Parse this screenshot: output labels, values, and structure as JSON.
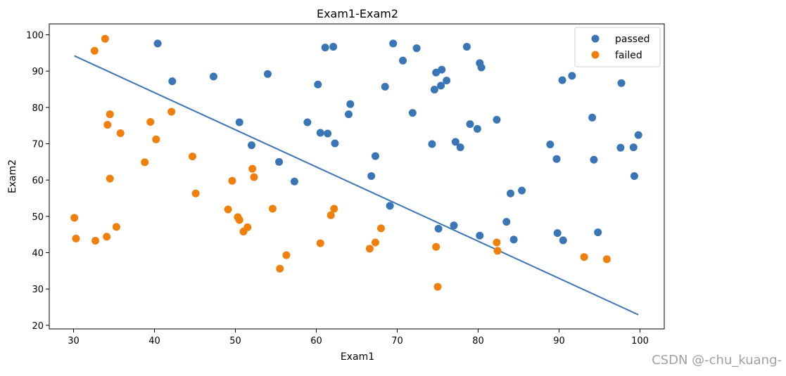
{
  "chart_data": {
    "type": "scatter",
    "title": "Exam1-Exam2",
    "xlabel": "Exam1",
    "ylabel": "Exam2",
    "xlim": [
      27,
      103
    ],
    "ylim": [
      19,
      103
    ],
    "xticks": [
      "30",
      "40",
      "50",
      "60",
      "70",
      "80",
      "90",
      "100"
    ],
    "yticks": [
      "20",
      "30",
      "40",
      "50",
      "60",
      "70",
      "80",
      "90",
      "100"
    ],
    "grid": false,
    "legend_position": "top-right",
    "colors": {
      "passed": "#3a75b5",
      "failed": "#f17f0b",
      "line": "#3a75b5"
    },
    "series": [
      {
        "name": "passed",
        "points": [
          [
            40.4,
            97.6
          ],
          [
            42.2,
            87.2
          ],
          [
            47.3,
            88.5
          ],
          [
            50.5,
            75.9
          ],
          [
            52.0,
            69.6
          ],
          [
            54.0,
            89.2
          ],
          [
            55.4,
            65.0
          ],
          [
            57.3,
            59.6
          ],
          [
            58.9,
            75.9
          ],
          [
            60.2,
            86.3
          ],
          [
            60.5,
            73.0
          ],
          [
            61.1,
            96.5
          ],
          [
            61.4,
            72.8
          ],
          [
            62.1,
            96.7
          ],
          [
            62.3,
            70.1
          ],
          [
            64.0,
            78.1
          ],
          [
            64.2,
            80.9
          ],
          [
            66.8,
            61.1
          ],
          [
            67.3,
            66.6
          ],
          [
            68.5,
            85.7
          ],
          [
            69.1,
            52.9
          ],
          [
            69.5,
            97.6
          ],
          [
            70.7,
            92.9
          ],
          [
            71.9,
            78.5
          ],
          [
            72.4,
            96.3
          ],
          [
            74.3,
            69.9
          ],
          [
            74.6,
            84.9
          ],
          [
            74.8,
            89.6
          ],
          [
            75.1,
            46.6
          ],
          [
            75.4,
            86.0
          ],
          [
            75.5,
            90.4
          ],
          [
            76.1,
            87.4
          ],
          [
            77.0,
            47.5
          ],
          [
            77.2,
            70.5
          ],
          [
            77.8,
            69.0
          ],
          [
            78.6,
            96.7
          ],
          [
            79.0,
            75.4
          ],
          [
            79.9,
            74.1
          ],
          [
            80.2,
            92.2
          ],
          [
            80.4,
            91.0
          ],
          [
            80.2,
            44.7
          ],
          [
            82.3,
            76.6
          ],
          [
            83.5,
            48.5
          ],
          [
            84.0,
            56.3
          ],
          [
            84.4,
            43.6
          ],
          [
            85.4,
            57.1
          ],
          [
            88.9,
            69.8
          ],
          [
            89.7,
            65.8
          ],
          [
            89.8,
            45.4
          ],
          [
            90.4,
            87.5
          ],
          [
            90.5,
            43.4
          ],
          [
            91.6,
            88.7
          ],
          [
            94.1,
            77.2
          ],
          [
            94.3,
            65.6
          ],
          [
            94.8,
            45.6
          ],
          [
            97.6,
            68.9
          ],
          [
            97.7,
            86.7
          ],
          [
            99.2,
            69.0
          ],
          [
            99.3,
            61.1
          ],
          [
            99.8,
            72.4
          ]
        ]
      },
      {
        "name": "failed",
        "points": [
          [
            30.1,
            49.6
          ],
          [
            30.3,
            43.9
          ],
          [
            32.6,
            95.6
          ],
          [
            32.7,
            43.3
          ],
          [
            33.9,
            98.9
          ],
          [
            34.1,
            44.4
          ],
          [
            34.2,
            75.2
          ],
          [
            34.5,
            60.4
          ],
          [
            34.5,
            78.1
          ],
          [
            35.3,
            47.1
          ],
          [
            35.8,
            72.9
          ],
          [
            38.8,
            64.9
          ],
          [
            39.5,
            76.0
          ],
          [
            40.2,
            71.2
          ],
          [
            42.1,
            78.8
          ],
          [
            44.7,
            66.5
          ],
          [
            45.1,
            56.3
          ],
          [
            49.1,
            51.9
          ],
          [
            49.6,
            59.8
          ],
          [
            50.3,
            49.8
          ],
          [
            50.5,
            49.0
          ],
          [
            51.0,
            45.8
          ],
          [
            51.5,
            47.0
          ],
          [
            52.1,
            63.1
          ],
          [
            52.3,
            60.8
          ],
          [
            54.6,
            52.1
          ],
          [
            55.5,
            35.6
          ],
          [
            56.3,
            39.3
          ],
          [
            60.5,
            42.6
          ],
          [
            61.8,
            50.3
          ],
          [
            62.2,
            52.1
          ],
          [
            66.6,
            41.1
          ],
          [
            67.3,
            42.8
          ],
          [
            68.0,
            46.7
          ],
          [
            74.8,
            41.6
          ],
          [
            75.0,
            30.6
          ],
          [
            82.3,
            42.8
          ],
          [
            82.4,
            40.5
          ],
          [
            93.1,
            38.8
          ],
          [
            95.9,
            38.2
          ]
        ]
      }
    ],
    "decision_line": {
      "x": [
        30.1,
        99.8
      ],
      "y": [
        94.2,
        22.9
      ]
    }
  },
  "watermark": "CSDN @-chu_kuang-"
}
